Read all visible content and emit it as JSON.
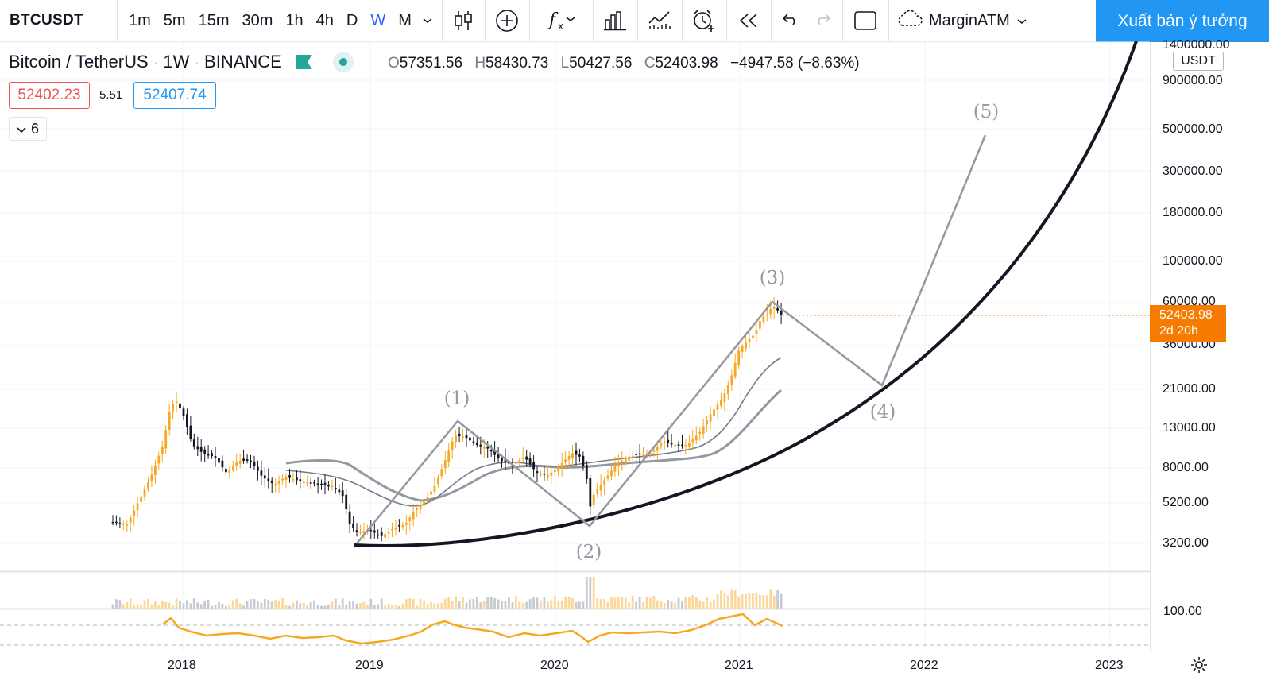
{
  "toolbar": {
    "symbol": "BTCUSDT",
    "intervals": [
      "1m",
      "5m",
      "15m",
      "30m",
      "1h",
      "4h",
      "D",
      "W",
      "M"
    ],
    "active_interval": "W",
    "layout_name": "MarginATM",
    "publish_label": "Xuất bản ý tưởng"
  },
  "legend": {
    "name": "Bitcoin / TetherUS",
    "interval": "1W",
    "exchange": "BINANCE",
    "open_label": "O",
    "open": "57351.56",
    "high_label": "H",
    "high": "58430.73",
    "low_label": "L",
    "low": "50427.56",
    "close_label": "C",
    "close": "52403.98",
    "change": "−4947.58 (−8.63%)",
    "bid": "52402.23",
    "spread": "5.51",
    "ask": "52407.74",
    "indicator_count": "6"
  },
  "price_scale": {
    "currency": "USDT",
    "ticks": [
      "1400000.00",
      "900000.00",
      "500000.00",
      "300000.00",
      "180000.00",
      "100000.00",
      "60000.00",
      "36000.00",
      "21000.00",
      "13000.00",
      "8000.00",
      "5200.00",
      "3200.00"
    ],
    "last_price": "52403.98",
    "countdown": "2d 20h",
    "rsi_tick": "100.00"
  },
  "time_axis": {
    "labels": [
      "2018",
      "2019",
      "2020",
      "2021",
      "2022",
      "2023"
    ]
  },
  "waves": [
    "(1)",
    "(2)",
    "(3)",
    "(4)",
    "(5)"
  ],
  "colors": {
    "up": "#f7a823",
    "down": "#131722",
    "accent": "#2962ff",
    "publish": "#2196f3",
    "last_price": "#f57c00",
    "wave_line": "#9598a1",
    "rsi": "#f7a823"
  }
}
